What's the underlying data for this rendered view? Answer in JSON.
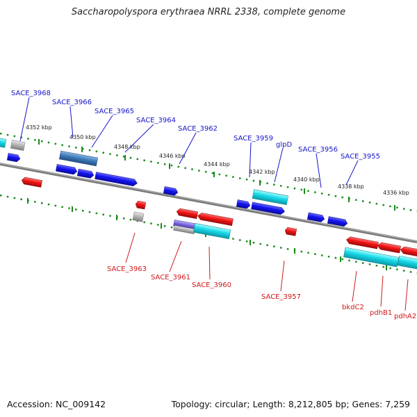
{
  "title": "Saccharopolyspora erythraea NRRL 2338, complete genome",
  "footer": {
    "accession": "Accession: NC_009142",
    "topology": "Topology: circular; Length: 8,212,805 bp; Genes: 7,259"
  },
  "colors": {
    "forward": "#1010e0",
    "reverse": "#e81010",
    "rna": "#18d8e8",
    "pseudo": "#b0b0b0",
    "backbone": "#808080",
    "ticks": "#1a8a1a"
  },
  "kbp_ticks": [
    "4352 kbp",
    "4350 kbp",
    "4348 kbp",
    "4346 kbp",
    "4344 kbp",
    "4342 kbp",
    "4340 kbp",
    "4338 kbp",
    "4336 kbp"
  ],
  "forward_labels": [
    "SACE_3968",
    "SACE_3966",
    "SACE_3965",
    "SACE_3964",
    "SACE_3962",
    "SACE_3959",
    "glpD",
    "SACE_3956",
    "SACE_3955"
  ],
  "reverse_labels": [
    "SACE_3963",
    "SACE_3961",
    "SACE_3960",
    "SACE_3957",
    "bkdC2",
    "pdhB1",
    "pdhA2"
  ]
}
